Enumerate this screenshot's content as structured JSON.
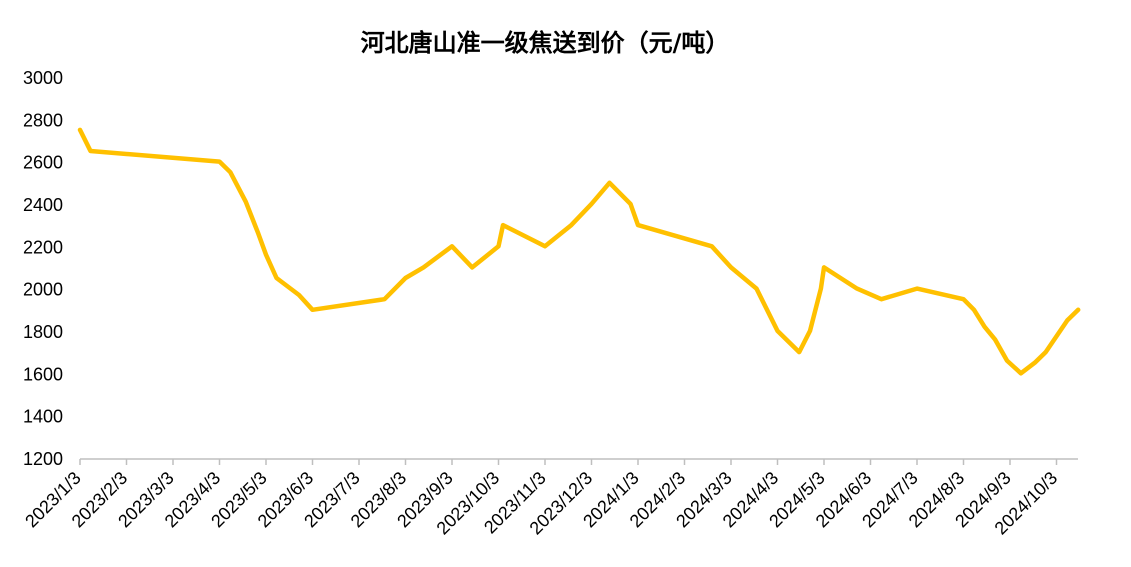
{
  "chart_data": {
    "type": "line",
    "title": "河北唐山准一级焦送到价（元/吨）",
    "xlabel": "",
    "ylabel": "",
    "ylim": [
      1200,
      3000
    ],
    "yticks": [
      "1200",
      "1400",
      "1600",
      "1800",
      "2000",
      "2200",
      "2400",
      "2600",
      "2800",
      "3000"
    ],
    "xticks": [
      "2023/1/3",
      "2023/2/3",
      "2023/3/3",
      "2023/4/3",
      "2023/5/3",
      "2023/6/3",
      "2023/7/3",
      "2023/8/3",
      "2023/9/3",
      "2023/10/3",
      "2023/11/3",
      "2023/12/3",
      "2024/1/3",
      "2024/2/3",
      "2024/3/3",
      "2024/4/3",
      "2024/5/3",
      "2024/6/3",
      "2024/7/3",
      "2024/8/3",
      "2024/9/3",
      "2024/10/3"
    ],
    "grid": false,
    "legend": "none",
    "line_color": "#FFC000",
    "series": [
      {
        "x": [
          "2023/1/3",
          "2023/1/10",
          "2023/4/3",
          "2023/4/10",
          "2023/4/20",
          "2023/4/28",
          "2023/5/3",
          "2023/5/10",
          "2023/5/25",
          "2023/6/3",
          "2023/7/20",
          "2023/8/3",
          "2023/8/15",
          "2023/9/3",
          "2023/9/16",
          "2023/10/3",
          "2023/10/6",
          "2023/11/3",
          "2023/11/20",
          "2023/12/3",
          "2023/12/15",
          "2023/12/29",
          "2024/1/3",
          "2024/2/20",
          "2024/3/3",
          "2024/3/20",
          "2024/4/3",
          "2024/4/17",
          "2024/4/24",
          "2024/5/1",
          "2024/5/3",
          "2024/5/25",
          "2024/6/10",
          "2024/7/3",
          "2024/8/3",
          "2024/8/10",
          "2024/8/17",
          "2024/8/24",
          "2024/9/1",
          "2024/9/10",
          "2024/9/19",
          "2024/9/26",
          "2024/10/10",
          "2024/10/17"
        ],
        "values": [
          2755,
          2655,
          2605,
          2555,
          2415,
          2265,
          2165,
          2055,
          1975,
          1905,
          1955,
          2055,
          2105,
          2205,
          2105,
          2205,
          2305,
          2205,
          2305,
          2405,
          2505,
          2405,
          2305,
          2205,
          2105,
          2005,
          1805,
          1705,
          1805,
          2005,
          2105,
          2005,
          1955,
          2005,
          1955,
          1905,
          1825,
          1765,
          1665,
          1605,
          1655,
          1705,
          1855,
          1905
        ]
      }
    ]
  }
}
